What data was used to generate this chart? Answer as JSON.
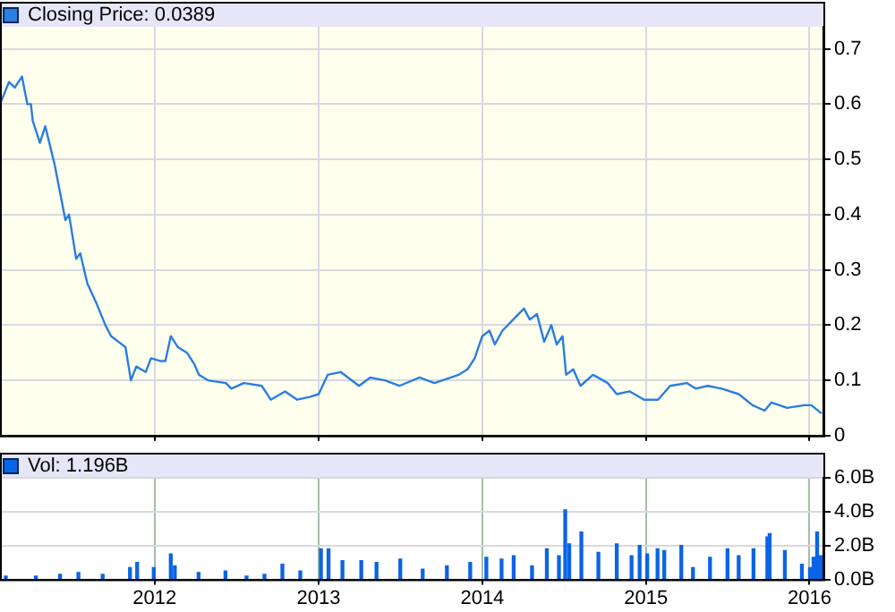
{
  "chart_data": [
    {
      "type": "line",
      "xlim": [
        "2011-01-21",
        "2016-02-01"
      ],
      "xticks": [
        "2012",
        "2013",
        "2014",
        "2015",
        "2016"
      ],
      "ylim": [
        0,
        0.74
      ],
      "yticks": [
        0,
        0.1,
        0.2,
        0.3,
        0.4,
        0.5,
        0.6,
        0.7
      ],
      "grid": true,
      "legend": "top left",
      "tick_labels": "y",
      "series": [
        {
          "name": "Closing Price: 0.0389",
          "color": "#2a7de1",
          "x": [
            "2011-01-21",
            "2011-02-10",
            "2011-02-23",
            "2011-03-11",
            "2011-03-23",
            "2011-03-31",
            "2011-04-04",
            "2011-04-20",
            "2011-05-02",
            "2011-05-23",
            "2011-06-04",
            "2011-06-16",
            "2011-06-24",
            "2011-07-10",
            "2011-07-19",
            "2011-08-04",
            "2011-08-24",
            "2011-09-13",
            "2011-09-26",
            "2011-10-12",
            "2011-10-28",
            "2011-11-09",
            "2011-11-21",
            "2011-12-12",
            "2011-12-24",
            "2012-01-13",
            "2012-01-25",
            "2012-02-06",
            "2012-02-22",
            "2012-03-13",
            "2012-03-29",
            "2012-04-09",
            "2012-04-29",
            "2012-06-08",
            "2012-06-20",
            "2012-07-18",
            "2012-08-27",
            "2012-09-16",
            "2012-10-18",
            "2012-11-14",
            "2012-12-12",
            "2013-01-01",
            "2013-01-21",
            "2013-02-19",
            "2013-04-01",
            "2013-04-26",
            "2013-05-29",
            "2013-06-30",
            "2013-08-14",
            "2013-09-16",
            "2013-10-23",
            "2013-11-09",
            "2013-11-29",
            "2013-12-15",
            "2014-01-01",
            "2014-01-17",
            "2014-01-29",
            "2014-02-15",
            "2014-03-11",
            "2014-04-04",
            "2014-04-17",
            "2014-05-03",
            "2014-05-19",
            "2014-06-04",
            "2014-06-16",
            "2014-06-29",
            "2014-07-07",
            "2014-07-23",
            "2014-08-08",
            "2014-09-05",
            "2014-10-08",
            "2014-10-28",
            "2014-11-26",
            "2014-12-28",
            "2015-01-28",
            "2015-02-24",
            "2015-04-03",
            "2015-04-22",
            "2015-05-19",
            "2015-06-19",
            "2015-07-27",
            "2015-08-27",
            "2015-09-23",
            "2015-10-08",
            "2015-11-12",
            "2015-12-20",
            "2016-01-05",
            "2016-01-28"
          ],
          "values": [
            0.6,
            0.64,
            0.63,
            0.65,
            0.6,
            0.6,
            0.57,
            0.53,
            0.56,
            0.49,
            0.44,
            0.39,
            0.4,
            0.32,
            0.33,
            0.275,
            0.24,
            0.2,
            0.18,
            0.17,
            0.16,
            0.1,
            0.125,
            0.115,
            0.14,
            0.135,
            0.135,
            0.18,
            0.16,
            0.15,
            0.13,
            0.11,
            0.1,
            0.095,
            0.085,
            0.095,
            0.09,
            0.065,
            0.08,
            0.065,
            0.07,
            0.075,
            0.11,
            0.115,
            0.09,
            0.105,
            0.1,
            0.09,
            0.105,
            0.095,
            0.105,
            0.11,
            0.12,
            0.14,
            0.18,
            0.19,
            0.165,
            0.19,
            0.21,
            0.23,
            0.21,
            0.22,
            0.17,
            0.2,
            0.165,
            0.18,
            0.11,
            0.12,
            0.09,
            0.11,
            0.095,
            0.075,
            0.08,
            0.065,
            0.065,
            0.09,
            0.095,
            0.085,
            0.09,
            0.085,
            0.075,
            0.055,
            0.045,
            0.06,
            0.05,
            0.055,
            0.055,
            0.04
          ]
        }
      ]
    },
    {
      "type": "bar",
      "xlim": [
        "2011-01-21",
        "2016-02-01"
      ],
      "xticks": [
        "2012",
        "2013",
        "2014",
        "2015",
        "2016"
      ],
      "ylim": [
        0,
        6
      ],
      "yticks": [
        {
          "value": 0,
          "label": "0.0B"
        },
        {
          "value": 2,
          "label": "2.0B"
        },
        {
          "value": 4,
          "label": "4.0B"
        },
        {
          "value": 6,
          "label": "6.0B"
        }
      ],
      "grid": true,
      "legend": "top left",
      "series": [
        {
          "name": "Vol: 1.196B",
          "color": "#0a64e6",
          "x": [
            "2011-02-03",
            "2011-04-11",
            "2011-06-04",
            "2011-07-15",
            "2011-09-07",
            "2011-11-07",
            "2011-11-23",
            "2011-12-30",
            "2012-02-06",
            "2012-02-15",
            "2012-04-08",
            "2012-06-07",
            "2012-07-24",
            "2012-09-02",
            "2012-10-12",
            "2012-11-21",
            "2013-01-06",
            "2013-01-23",
            "2013-02-23",
            "2013-04-06",
            "2013-05-10",
            "2013-07-02",
            "2013-08-21",
            "2013-10-14",
            "2013-12-05",
            "2014-01-10",
            "2014-02-13",
            "2014-03-12",
            "2014-04-22",
            "2014-05-25",
            "2014-06-21",
            "2014-07-05",
            "2014-07-14",
            "2014-08-10",
            "2014-09-17",
            "2014-10-28",
            "2014-11-30",
            "2014-12-18",
            "2015-01-04",
            "2015-01-27",
            "2015-02-11",
            "2015-03-21",
            "2015-04-16",
            "2015-05-24",
            "2015-07-02",
            "2015-07-27",
            "2015-08-29",
            "2015-09-29",
            "2015-10-04",
            "2015-11-07",
            "2015-12-15",
            "2016-01-02",
            "2016-01-10",
            "2016-01-18",
            "2016-01-26"
          ],
          "values": [
            0.2,
            0.2,
            0.3,
            0.4,
            0.3,
            0.7,
            1.0,
            0.7,
            1.5,
            0.8,
            0.4,
            0.5,
            0.2,
            0.3,
            0.9,
            0.5,
            1.8,
            1.8,
            1.1,
            1.1,
            1.0,
            1.2,
            0.6,
            0.8,
            1.0,
            1.3,
            1.2,
            1.4,
            0.8,
            1.8,
            1.4,
            4.1,
            2.1,
            2.8,
            1.6,
            2.1,
            1.4,
            2.0,
            1.5,
            1.8,
            1.7,
            2.0,
            0.7,
            1.3,
            1.8,
            1.4,
            1.8,
            2.5,
            2.7,
            1.7,
            0.9,
            0.7,
            1.3,
            2.8,
            1.4
          ]
        }
      ]
    }
  ]
}
